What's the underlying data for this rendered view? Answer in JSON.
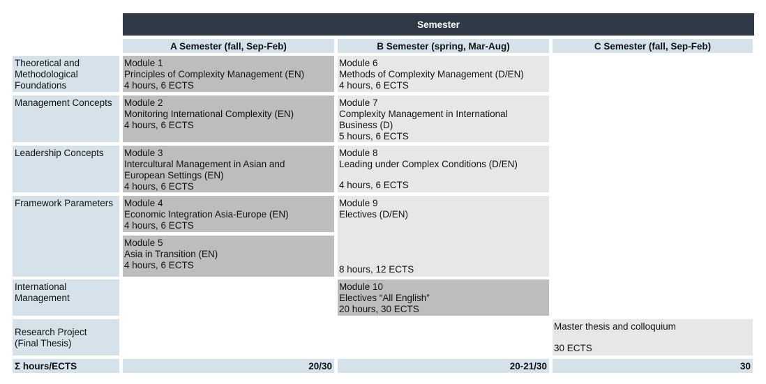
{
  "header": {
    "title": "Semester"
  },
  "columns": [
    "A Semester (fall, Sep-Feb)",
    "B Semester (spring, Mar-Aug)",
    "C Semester (fall, Sep-Feb)"
  ],
  "rows": [
    "Theoretical and\nMethodological\nFoundations",
    "Management Concepts",
    "Leadership Concepts",
    "Framework Parameters",
    "International\nManagement",
    "Research Project\n(Final Thesis)"
  ],
  "modules": {
    "m1": {
      "title": "Module 1",
      "name": "Principles of Complexity Management (EN)",
      "hours": "4 hours, 6 ECTS"
    },
    "m2": {
      "title": "Module 2",
      "name": "Monitoring International Complexity (EN)",
      "hours": "4 hours, 6 ECTS"
    },
    "m3": {
      "title": "Module 3",
      "name": "Intercultural Management in Asian and\nEuropean Settings (EN)",
      "hours": "4 hours, 6 ECTS"
    },
    "m4": {
      "title": "Module 4",
      "name": "Economic Integration Asia-Europe (EN)",
      "hours": "4 hours, 6 ECTS"
    },
    "m5": {
      "title": "Module 5",
      "name": "Asia in Transition (EN)",
      "hours": "4 hours, 6 ECTS"
    },
    "m6": {
      "title": "Module 6",
      "name": "Methods of Complexity Management (D/EN)",
      "hours": "4 hours, 6 ECTS"
    },
    "m7": {
      "title": "Module 7",
      "name": "Complexity Management in International\nBusiness (D)",
      "hours": "5 hours, 6 ECTS"
    },
    "m8": {
      "title": "Module 8",
      "name": "Leading under Complex Conditions (D/EN)",
      "hours": "4 hours, 6 ECTS"
    },
    "m9": {
      "title": "Module 9",
      "name": "Electives (D/EN)",
      "hours": "8 hours, 12 ECTS"
    },
    "m10": {
      "title": "Module 10",
      "name": "Electives “All English”",
      "hours": "20 hours, 30 ECTS"
    }
  },
  "thesis": {
    "name": "Master thesis and colloquium",
    "ects": "30 ECTS"
  },
  "totals": {
    "label": "Σ hours/ECTS",
    "a": "20/30",
    "b": "20-21/30",
    "c": "30"
  }
}
